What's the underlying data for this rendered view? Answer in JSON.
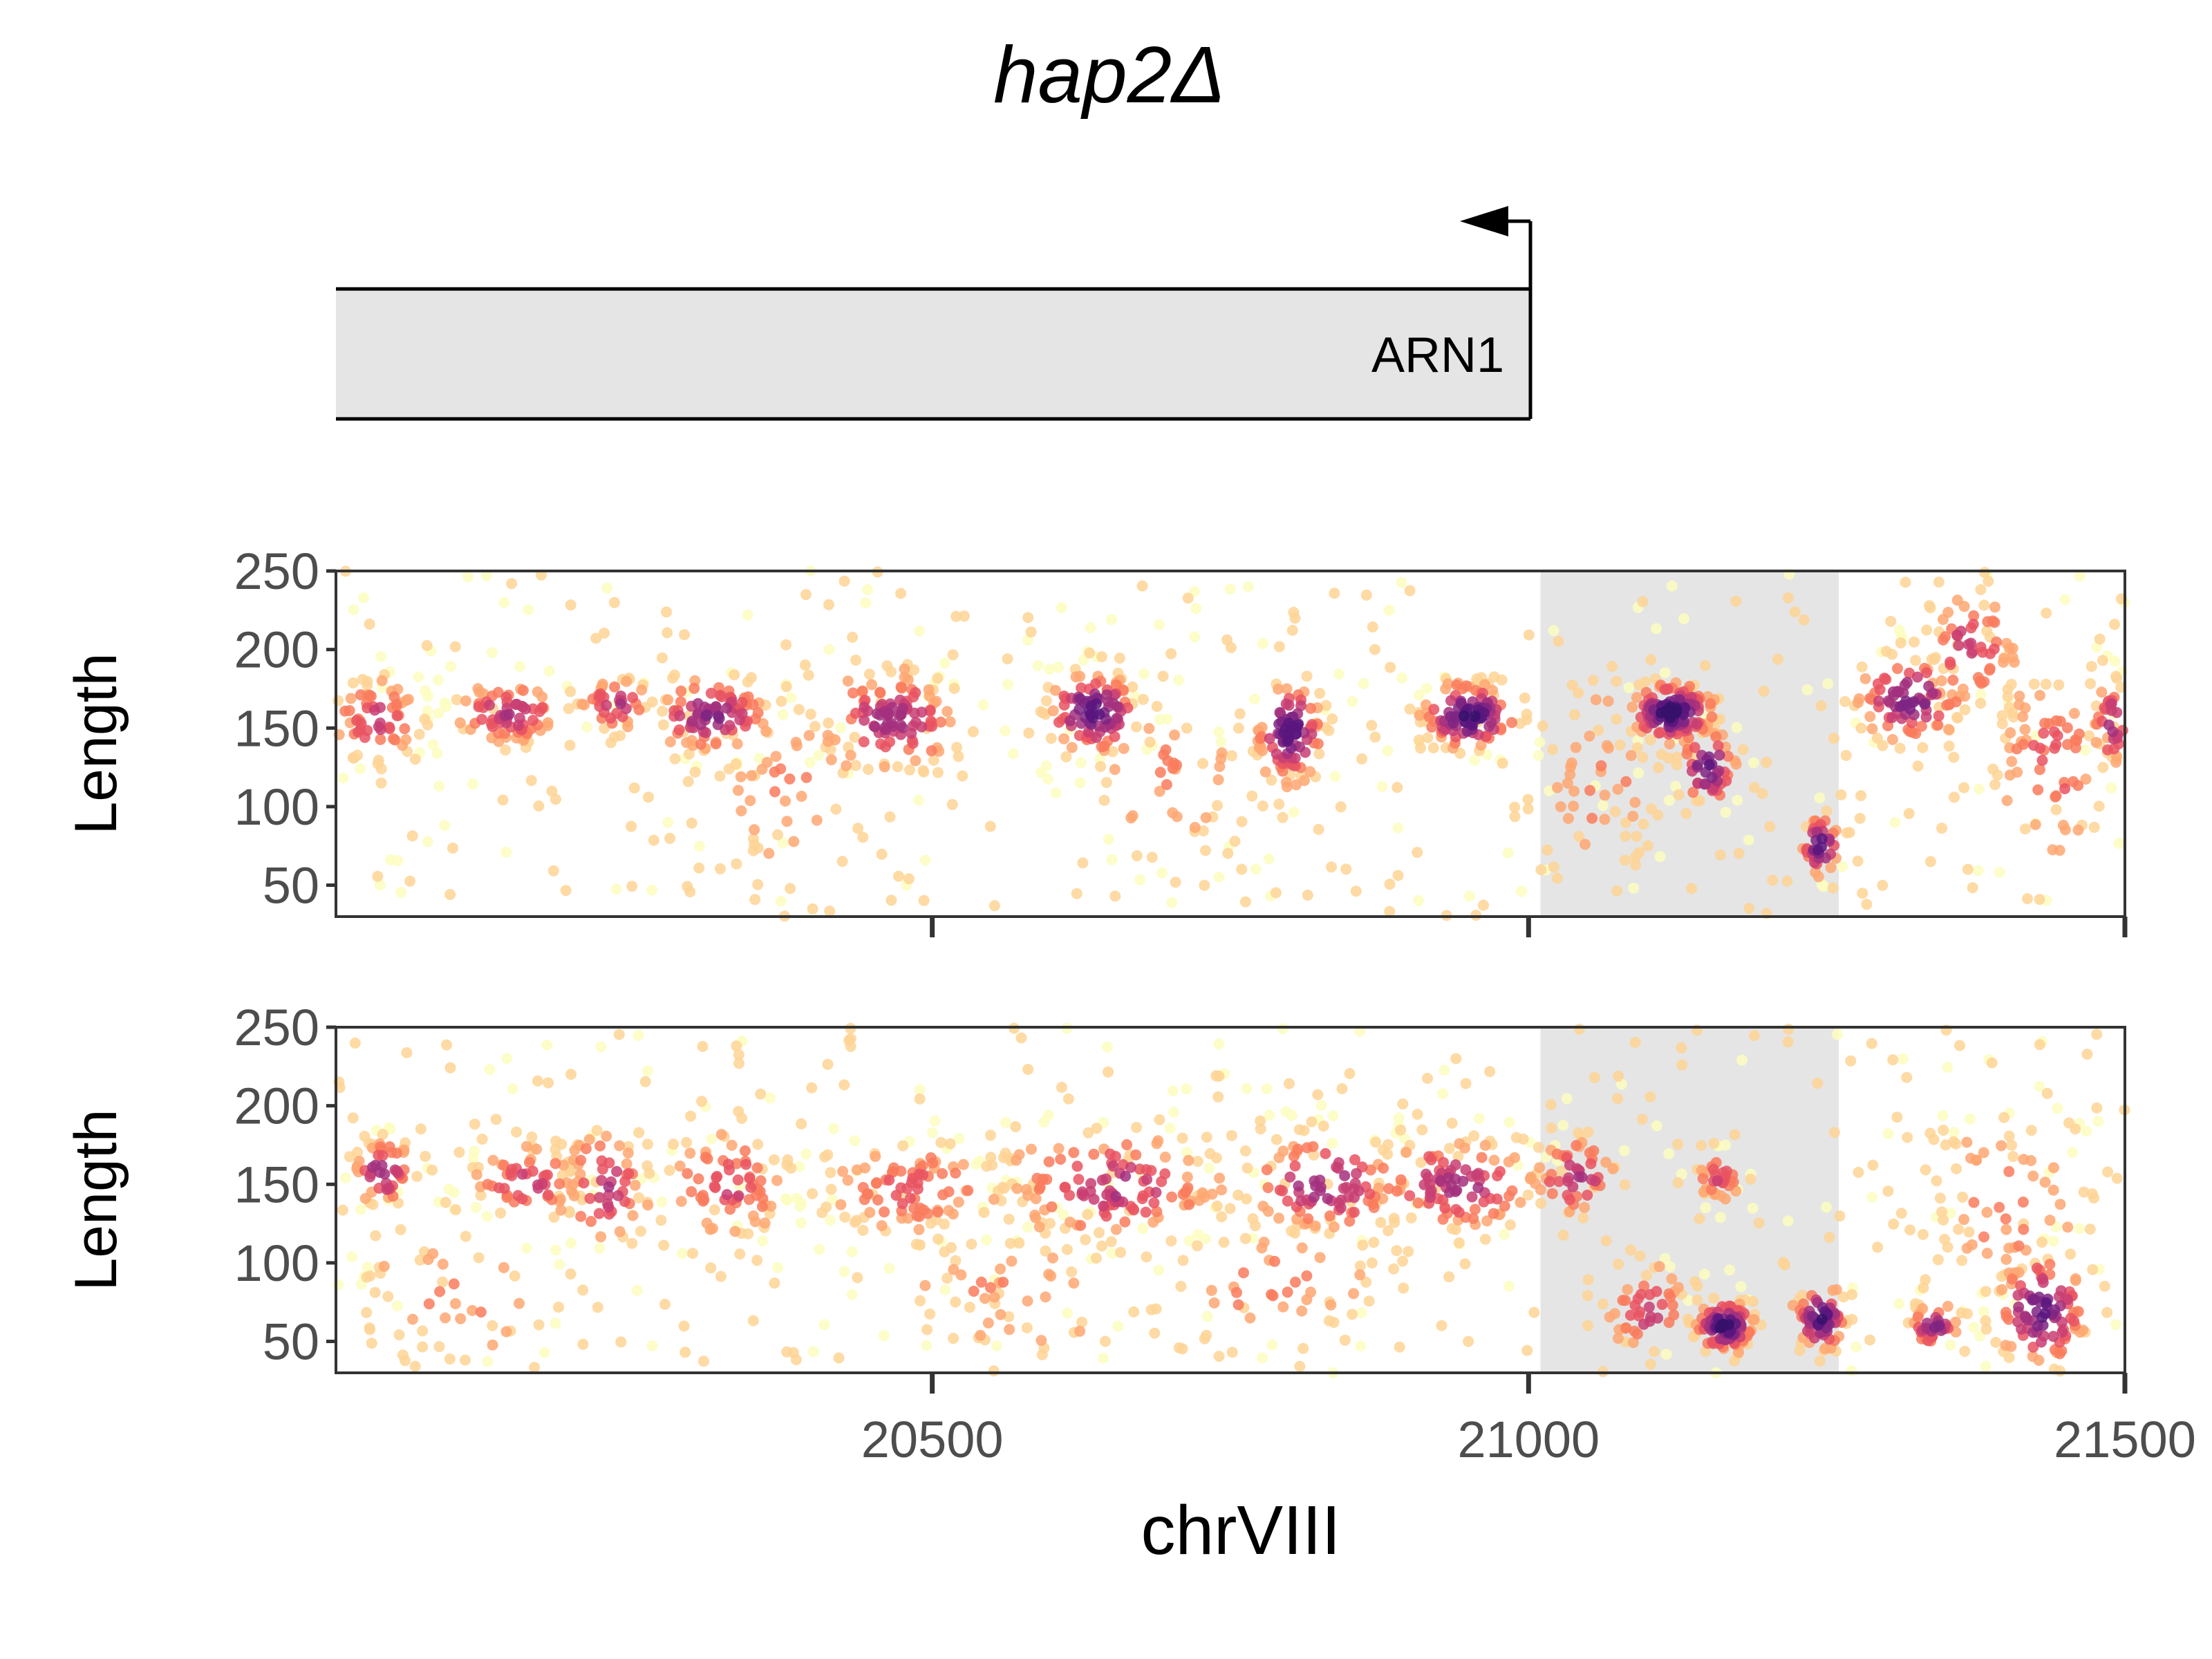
{
  "title": "hap2Δ",
  "colors": {
    "gene_fill": "#e5e5e5",
    "highlight_fill": "#e5e5e5",
    "axis": "#333333",
    "tick_text": "#4d4d4d",
    "palette": [
      "#fcfdbf",
      "#fed395",
      "#fea772",
      "#f97b5d",
      "#e95462",
      "#c83e73",
      "#a3307e",
      "#7e2482",
      "#5a167e",
      "#36106b"
    ]
  },
  "gene": {
    "name": "ARN1",
    "start": 20000,
    "end": 21010,
    "strand": "-",
    "icon": "tss-arrow-left-icon"
  },
  "chart_data": {
    "type": "scatter",
    "xlabel": "chrVIII",
    "xlim": [
      20000,
      21500
    ],
    "xticks": [
      20500,
      21000,
      21500
    ],
    "xtick_labels": [
      "20500",
      "21000",
      "21500"
    ],
    "ylim": [
      30,
      250
    ],
    "yticks": [
      50,
      100,
      150,
      200,
      250
    ],
    "ytick_labels": [
      "50",
      "100",
      "150",
      "200",
      "250"
    ],
    "color_encoding": "point density (magma palette, light = sparse, dark = dense)",
    "highlight_region": [
      21010,
      21260
    ],
    "panels": [
      {
        "ylabel": "Length",
        "show_x_tick_labels": false,
        "seed": 17,
        "clusters": [
          {
            "x": 20035,
            "y": 155,
            "sx": 22,
            "sy": 16,
            "n": 75,
            "d": 0.55
          },
          {
            "x": 20145,
            "y": 160,
            "sx": 26,
            "sy": 12,
            "n": 80,
            "d": 0.62
          },
          {
            "x": 20235,
            "y": 165,
            "sx": 18,
            "sy": 10,
            "n": 45,
            "d": 0.6
          },
          {
            "x": 20315,
            "y": 158,
            "sx": 28,
            "sy": 13,
            "n": 95,
            "d": 0.75
          },
          {
            "x": 20465,
            "y": 155,
            "sx": 34,
            "sy": 18,
            "n": 120,
            "d": 0.68
          },
          {
            "x": 20635,
            "y": 160,
            "sx": 22,
            "sy": 14,
            "n": 115,
            "d": 0.92
          },
          {
            "x": 20800,
            "y": 148,
            "sx": 16,
            "sy": 18,
            "n": 95,
            "d": 0.9
          },
          {
            "x": 20950,
            "y": 158,
            "sx": 22,
            "sy": 12,
            "n": 115,
            "d": 0.97
          },
          {
            "x": 21120,
            "y": 160,
            "sx": 20,
            "sy": 11,
            "n": 150,
            "d": 1.0
          },
          {
            "x": 21150,
            "y": 125,
            "sx": 14,
            "sy": 14,
            "n": 55,
            "d": 0.85
          },
          {
            "x": 21245,
            "y": 75,
            "sx": 9,
            "sy": 11,
            "n": 45,
            "d": 0.92
          },
          {
            "x": 21320,
            "y": 168,
            "sx": 26,
            "sy": 16,
            "n": 95,
            "d": 0.78
          },
          {
            "x": 21370,
            "y": 200,
            "sx": 26,
            "sy": 22,
            "n": 65,
            "d": 0.55
          },
          {
            "x": 21440,
            "y": 130,
            "sx": 30,
            "sy": 38,
            "n": 85,
            "d": 0.45
          },
          {
            "x": 21490,
            "y": 152,
            "sx": 10,
            "sy": 16,
            "n": 45,
            "d": 0.68
          },
          {
            "x": 20380,
            "y": 115,
            "sx": 40,
            "sy": 35,
            "n": 50,
            "d": 0.3
          },
          {
            "x": 20700,
            "y": 120,
            "sx": 45,
            "sy": 35,
            "n": 55,
            "d": 0.3
          },
          {
            "x": 21060,
            "y": 120,
            "sx": 35,
            "sy": 40,
            "n": 45,
            "d": 0.3
          }
        ],
        "background_points": 360
      },
      {
        "ylabel": "Length",
        "show_x_tick_labels": true,
        "seed": 42,
        "clusters": [
          {
            "x": 20040,
            "y": 158,
            "sx": 14,
            "sy": 12,
            "n": 55,
            "d": 0.75
          },
          {
            "x": 20160,
            "y": 150,
            "sx": 28,
            "sy": 14,
            "n": 75,
            "d": 0.55
          },
          {
            "x": 20225,
            "y": 148,
            "sx": 22,
            "sy": 22,
            "n": 60,
            "d": 0.6
          },
          {
            "x": 20330,
            "y": 150,
            "sx": 30,
            "sy": 20,
            "n": 80,
            "d": 0.5
          },
          {
            "x": 20480,
            "y": 148,
            "sx": 45,
            "sy": 18,
            "n": 100,
            "d": 0.45
          },
          {
            "x": 20650,
            "y": 150,
            "sx": 55,
            "sy": 20,
            "n": 140,
            "d": 0.6
          },
          {
            "x": 20830,
            "y": 150,
            "sx": 40,
            "sy": 18,
            "n": 100,
            "d": 0.7
          },
          {
            "x": 20940,
            "y": 150,
            "sx": 40,
            "sy": 18,
            "n": 110,
            "d": 0.65
          },
          {
            "x": 21040,
            "y": 155,
            "sx": 22,
            "sy": 15,
            "n": 55,
            "d": 0.6
          },
          {
            "x": 21100,
            "y": 70,
            "sx": 20,
            "sy": 18,
            "n": 50,
            "d": 0.55
          },
          {
            "x": 21160,
            "y": 155,
            "sx": 12,
            "sy": 10,
            "n": 35,
            "d": 0.5
          },
          {
            "x": 21165,
            "y": 60,
            "sx": 14,
            "sy": 9,
            "n": 110,
            "d": 1.0
          },
          {
            "x": 21245,
            "y": 65,
            "sx": 12,
            "sy": 12,
            "n": 70,
            "d": 0.92
          },
          {
            "x": 21340,
            "y": 60,
            "sx": 12,
            "sy": 8,
            "n": 45,
            "d": 0.75
          },
          {
            "x": 21430,
            "y": 70,
            "sx": 22,
            "sy": 20,
            "n": 110,
            "d": 0.85
          },
          {
            "x": 21400,
            "y": 140,
            "sx": 40,
            "sy": 35,
            "n": 70,
            "d": 0.35
          },
          {
            "x": 20560,
            "y": 80,
            "sx": 60,
            "sy": 30,
            "n": 60,
            "d": 0.3
          },
          {
            "x": 20780,
            "y": 85,
            "sx": 60,
            "sy": 30,
            "n": 60,
            "d": 0.3
          },
          {
            "x": 20100,
            "y": 80,
            "sx": 50,
            "sy": 30,
            "n": 50,
            "d": 0.3
          }
        ],
        "background_points": 380
      }
    ]
  }
}
